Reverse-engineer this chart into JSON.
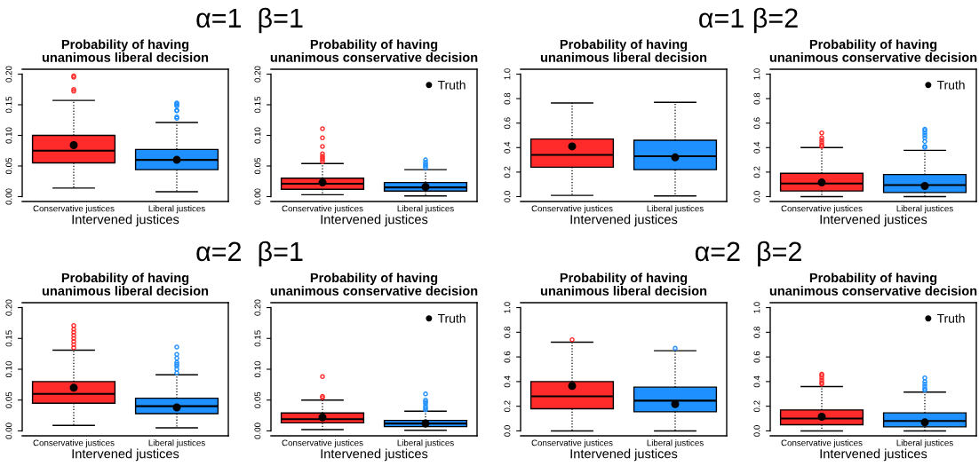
{
  "chart_data": [
    {
      "type": "box",
      "subtitle": "α=1  β=1",
      "title": "Probability of having\nunanimous liberal decision",
      "xlabel": "Intervened justices",
      "categories": [
        "Conservative justices",
        "Liberal justices"
      ],
      "colors": [
        "#ff2a2a",
        "#1e90ff"
      ],
      "ylim": [
        -0.008,
        0.208
      ],
      "yticks": [
        {
          "value": 0,
          "label": "0.00"
        },
        {
          "value": 0.05,
          "label": "0.05"
        },
        {
          "value": 0.1,
          "label": "0.10"
        },
        {
          "value": 0.15,
          "label": "0.15"
        },
        {
          "value": 0.2,
          "label": "0.20"
        }
      ],
      "grid": false,
      "legend": false,
      "line_style": "dotted",
      "boxes": [
        {
          "low": 0.014,
          "q1": 0.055,
          "median": 0.075,
          "q3": 0.1,
          "high": 0.157,
          "outliers": [
            0.172,
            0.175,
            0.195,
            0.197
          ]
        },
        {
          "low": 0.008,
          "q1": 0.044,
          "median": 0.06,
          "q3": 0.077,
          "high": 0.121,
          "outliers": [
            0.128,
            0.13,
            0.14,
            0.141,
            0.148,
            0.15,
            0.152,
            0.153
          ]
        }
      ],
      "series": [
        {
          "type": "scatter",
          "color": "#000000",
          "x": [
            "Conservative justices",
            "Liberal justices"
          ],
          "values": [
            0.084,
            0.06
          ],
          "marker": "circle"
        }
      ]
    },
    {
      "type": "box",
      "title": "Probability of having\nunanimous conservative decision",
      "xlabel": "Intervened justices",
      "categories": [
        "Conservative justices",
        "Liberal justices"
      ],
      "colors": [
        "#ff2a2a",
        "#1e90ff"
      ],
      "ylim": [
        -0.008,
        0.208
      ],
      "yticks": [
        {
          "value": 0,
          "label": "0.00"
        },
        {
          "value": 0.05,
          "label": "0.05"
        },
        {
          "value": 0.1,
          "label": "0.10"
        },
        {
          "value": 0.15,
          "label": "0.15"
        },
        {
          "value": 0.2,
          "label": "0.20"
        }
      ],
      "grid": false,
      "legend": "top right",
      "line_style": "dotted",
      "boxes": [
        {
          "low": 0.003,
          "q1": 0.012,
          "median": 0.021,
          "q3": 0.03,
          "high": 0.054,
          "outliers": [
            0.057,
            0.06,
            0.063,
            0.066,
            0.07,
            0.082,
            0.096,
            0.111
          ]
        },
        {
          "low": 0.001,
          "q1": 0.009,
          "median": 0.015,
          "q3": 0.023,
          "high": 0.044,
          "outliers": [
            0.047,
            0.05,
            0.053,
            0.056,
            0.06
          ]
        }
      ],
      "series": [
        {
          "type": "scatter",
          "name": "Truth",
          "color": "#000000",
          "x": [
            "Conservative justices",
            "Liberal justices"
          ],
          "values": [
            0.023,
            0.016
          ],
          "marker": "circle"
        }
      ]
    },
    {
      "type": "box",
      "subtitle": "α=1 β=2",
      "title": "Probability of having\nunanimous liberal decision",
      "xlabel": "Intervened justices",
      "categories": [
        "Conservative justices",
        "Liberal justices"
      ],
      "colors": [
        "#ff2a2a",
        "#1e90ff"
      ],
      "ylim": [
        -0.04,
        1.04
      ],
      "yticks": [
        {
          "value": 0,
          "label": "0.0"
        },
        {
          "value": 0.2,
          "label": "0.2"
        },
        {
          "value": 0.4,
          "label": "0.4"
        },
        {
          "value": 0.6,
          "label": "0.6"
        },
        {
          "value": 0.8,
          "label": "0.8"
        },
        {
          "value": 1,
          "label": "1.0"
        }
      ],
      "grid": false,
      "legend": false,
      "line_style": "dotted",
      "boxes": [
        {
          "low": 0.01,
          "q1": 0.24,
          "median": 0.34,
          "q3": 0.47,
          "high": 0.765
        },
        {
          "low": 0.005,
          "q1": 0.22,
          "median": 0.33,
          "q3": 0.46,
          "high": 0.77
        }
      ],
      "series": [
        {
          "type": "scatter",
          "color": "#000000",
          "x": [
            "Conservative justices",
            "Liberal justices"
          ],
          "values": [
            0.41,
            0.32
          ],
          "marker": "circle"
        }
      ]
    },
    {
      "type": "box",
      "title": "Probability of having\nunanimous conservative decision",
      "xlabel": "Intervened justices",
      "categories": [
        "Conservative justices",
        "Liberal justices"
      ],
      "colors": [
        "#ff2a2a",
        "#1e90ff"
      ],
      "ylim": [
        -0.04,
        1.04
      ],
      "yticks": [
        {
          "value": 0,
          "label": "0.0"
        },
        {
          "value": 0.2,
          "label": "0.2"
        },
        {
          "value": 0.4,
          "label": "0.4"
        },
        {
          "value": 0.6,
          "label": "0.6"
        },
        {
          "value": 0.8,
          "label": "0.8"
        },
        {
          "value": 1,
          "label": "1.0"
        }
      ],
      "grid": false,
      "legend": "top right",
      "line_style": "dotted",
      "boxes": [
        {
          "low": 0.0,
          "q1": 0.046,
          "median": 0.107,
          "q3": 0.19,
          "high": 0.4,
          "outliers": [
            0.41,
            0.42,
            0.44,
            0.46,
            0.48,
            0.52
          ]
        },
        {
          "low": 0.0,
          "q1": 0.033,
          "median": 0.094,
          "q3": 0.18,
          "high": 0.378,
          "outliers": [
            0.4,
            0.41,
            0.45,
            0.48,
            0.5,
            0.52,
            0.54,
            0.55
          ]
        }
      ],
      "series": [
        {
          "type": "scatter",
          "name": "Truth",
          "color": "#000000",
          "x": [
            "Conservative justices",
            "Liberal justices"
          ],
          "values": [
            0.115,
            0.087
          ],
          "marker": "circle"
        }
      ]
    },
    {
      "type": "box",
      "subtitle": "α=2  β=1",
      "title": "Probability of having\nunanimous liberal decision",
      "xlabel": "Intervened justices",
      "categories": [
        "Conservative justices",
        "Liberal justices"
      ],
      "colors": [
        "#ff2a2a",
        "#1e90ff"
      ],
      "ylim": [
        -0.008,
        0.208
      ],
      "yticks": [
        {
          "value": 0,
          "label": "0.00"
        },
        {
          "value": 0.05,
          "label": "0.05"
        },
        {
          "value": 0.1,
          "label": "0.10"
        },
        {
          "value": 0.15,
          "label": "0.15"
        },
        {
          "value": 0.2,
          "label": "0.20"
        }
      ],
      "grid": false,
      "legend": false,
      "line_style": "dotted",
      "boxes": [
        {
          "low": 0.009,
          "q1": 0.045,
          "median": 0.06,
          "q3": 0.08,
          "high": 0.131,
          "outliers": [
            0.135,
            0.14,
            0.145,
            0.15,
            0.155,
            0.16,
            0.165,
            0.171
          ]
        },
        {
          "low": 0.005,
          "q1": 0.028,
          "median": 0.04,
          "q3": 0.053,
          "high": 0.091,
          "outliers": [
            0.094,
            0.1,
            0.105,
            0.108,
            0.111,
            0.118,
            0.124,
            0.136
          ]
        }
      ],
      "series": [
        {
          "type": "scatter",
          "color": "#000000",
          "x": [
            "Conservative justices",
            "Liberal justices"
          ],
          "values": [
            0.07,
            0.038
          ],
          "marker": "circle"
        }
      ]
    },
    {
      "type": "box",
      "title": "Probability of having\nunanimous conservative decision",
      "xlabel": "Intervened justices",
      "categories": [
        "Conservative justices",
        "Liberal justices"
      ],
      "colors": [
        "#ff2a2a",
        "#1e90ff"
      ],
      "ylim": [
        -0.008,
        0.208
      ],
      "yticks": [
        {
          "value": 0,
          "label": "0.00"
        },
        {
          "value": 0.05,
          "label": "0.05"
        },
        {
          "value": 0.1,
          "label": "0.10"
        },
        {
          "value": 0.15,
          "label": "0.15"
        },
        {
          "value": 0.2,
          "label": "0.20"
        }
      ],
      "grid": false,
      "legend": "top right",
      "line_style": "dotted",
      "boxes": [
        {
          "low": 0.002,
          "q1": 0.013,
          "median": 0.019,
          "q3": 0.029,
          "high": 0.05,
          "outliers": [
            0.054,
            0.056,
            0.088
          ]
        },
        {
          "low": 0.001,
          "q1": 0.007,
          "median": 0.012,
          "q3": 0.017,
          "high": 0.032,
          "outliers": [
            0.034,
            0.037,
            0.04,
            0.044,
            0.047,
            0.05,
            0.06
          ]
        }
      ],
      "series": [
        {
          "type": "scatter",
          "name": "Truth",
          "color": "#000000",
          "x": [
            "Conservative justices",
            "Liberal justices"
          ],
          "values": [
            0.022,
            0.012
          ],
          "marker": "circle"
        }
      ]
    },
    {
      "type": "box",
      "subtitle": "α=2  β=2",
      "title": "Probability of having\nunanimous liberal decision",
      "xlabel": "Intervened justices",
      "categories": [
        "Conservative justices",
        "Liberal justices"
      ],
      "colors": [
        "#ff2a2a",
        "#1e90ff"
      ],
      "ylim": [
        -0.04,
        1.04
      ],
      "yticks": [
        {
          "value": 0,
          "label": "0.0"
        },
        {
          "value": 0.2,
          "label": "0.2"
        },
        {
          "value": 0.4,
          "label": "0.4"
        },
        {
          "value": 0.6,
          "label": "0.6"
        },
        {
          "value": 0.8,
          "label": "0.8"
        },
        {
          "value": 1,
          "label": "1.0"
        }
      ],
      "grid": false,
      "legend": false,
      "line_style": "dotted",
      "boxes": [
        {
          "low": 0.0,
          "q1": 0.18,
          "median": 0.28,
          "q3": 0.4,
          "high": 0.72,
          "outliers": [
            0.74
          ]
        },
        {
          "low": 0.0,
          "q1": 0.155,
          "median": 0.245,
          "q3": 0.355,
          "high": 0.65,
          "outliers": [
            0.67
          ]
        }
      ],
      "series": [
        {
          "type": "scatter",
          "color": "#000000",
          "x": [
            "Conservative justices",
            "Liberal justices"
          ],
          "values": [
            0.365,
            0.217
          ],
          "marker": "circle"
        }
      ]
    },
    {
      "type": "box",
      "title": "Probability of having\nunanimous conservative decision",
      "xlabel": "Intervened justices",
      "categories": [
        "Conservative justices",
        "Liberal justices"
      ],
      "colors": [
        "#ff2a2a",
        "#1e90ff"
      ],
      "ylim": [
        -0.04,
        1.04
      ],
      "yticks": [
        {
          "value": 0,
          "label": "0.0"
        },
        {
          "value": 0.2,
          "label": "0.2"
        },
        {
          "value": 0.4,
          "label": "0.4"
        },
        {
          "value": 0.6,
          "label": "0.6"
        },
        {
          "value": 0.8,
          "label": "0.8"
        },
        {
          "value": 1,
          "label": "1.0"
        }
      ],
      "grid": false,
      "legend": "top right",
      "line_style": "dotted",
      "boxes": [
        {
          "low": 0.0,
          "q1": 0.05,
          "median": 0.1,
          "q3": 0.17,
          "high": 0.36,
          "outliers": [
            0.38,
            0.39,
            0.41,
            0.43,
            0.45,
            0.46
          ]
        },
        {
          "low": 0.0,
          "q1": 0.033,
          "median": 0.08,
          "q3": 0.146,
          "high": 0.315,
          "outliers": [
            0.33,
            0.34,
            0.36,
            0.38,
            0.4,
            0.43
          ]
        }
      ],
      "series": [
        {
          "type": "scatter",
          "name": "Truth",
          "color": "#000000",
          "x": [
            "Conservative justices",
            "Liberal justices"
          ],
          "values": [
            0.115,
            0.069
          ],
          "marker": "circle"
        }
      ]
    }
  ]
}
